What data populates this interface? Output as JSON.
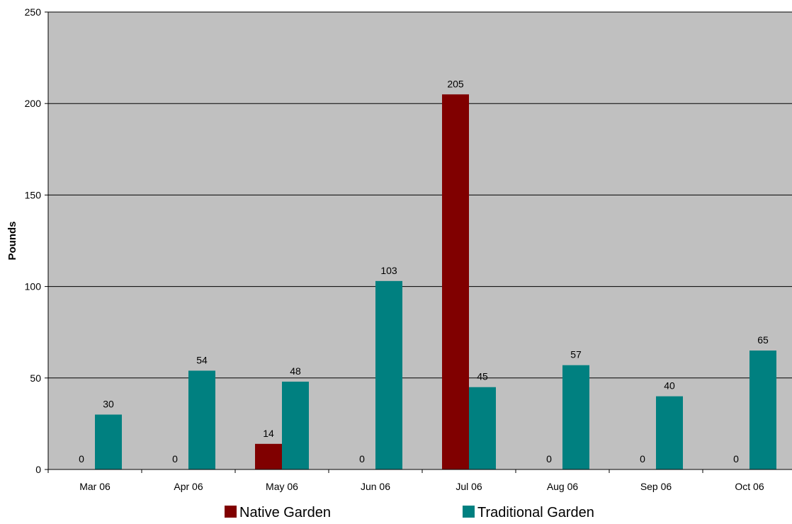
{
  "chart_data": {
    "type": "bar",
    "title": "",
    "xlabel": "",
    "ylabel": "Pounds",
    "ylim": [
      0,
      250
    ],
    "yticks": [
      0,
      50,
      100,
      150,
      200,
      250
    ],
    "grid": true,
    "legend_position": "bottom",
    "plot_background": "#c0c0c0",
    "categories": [
      "Mar 06",
      "Apr 06",
      "May 06",
      "Jun 06",
      "Jul 06",
      "Aug 06",
      "Sep 06",
      "Oct 06"
    ],
    "series": [
      {
        "name": "Native Garden",
        "color": "#800000",
        "values": [
          0,
          0,
          14,
          0,
          205,
          0,
          0,
          0
        ]
      },
      {
        "name": "Traditional Garden",
        "color": "#008080",
        "values": [
          30,
          54,
          48,
          103,
          45,
          57,
          40,
          65
        ]
      }
    ]
  }
}
